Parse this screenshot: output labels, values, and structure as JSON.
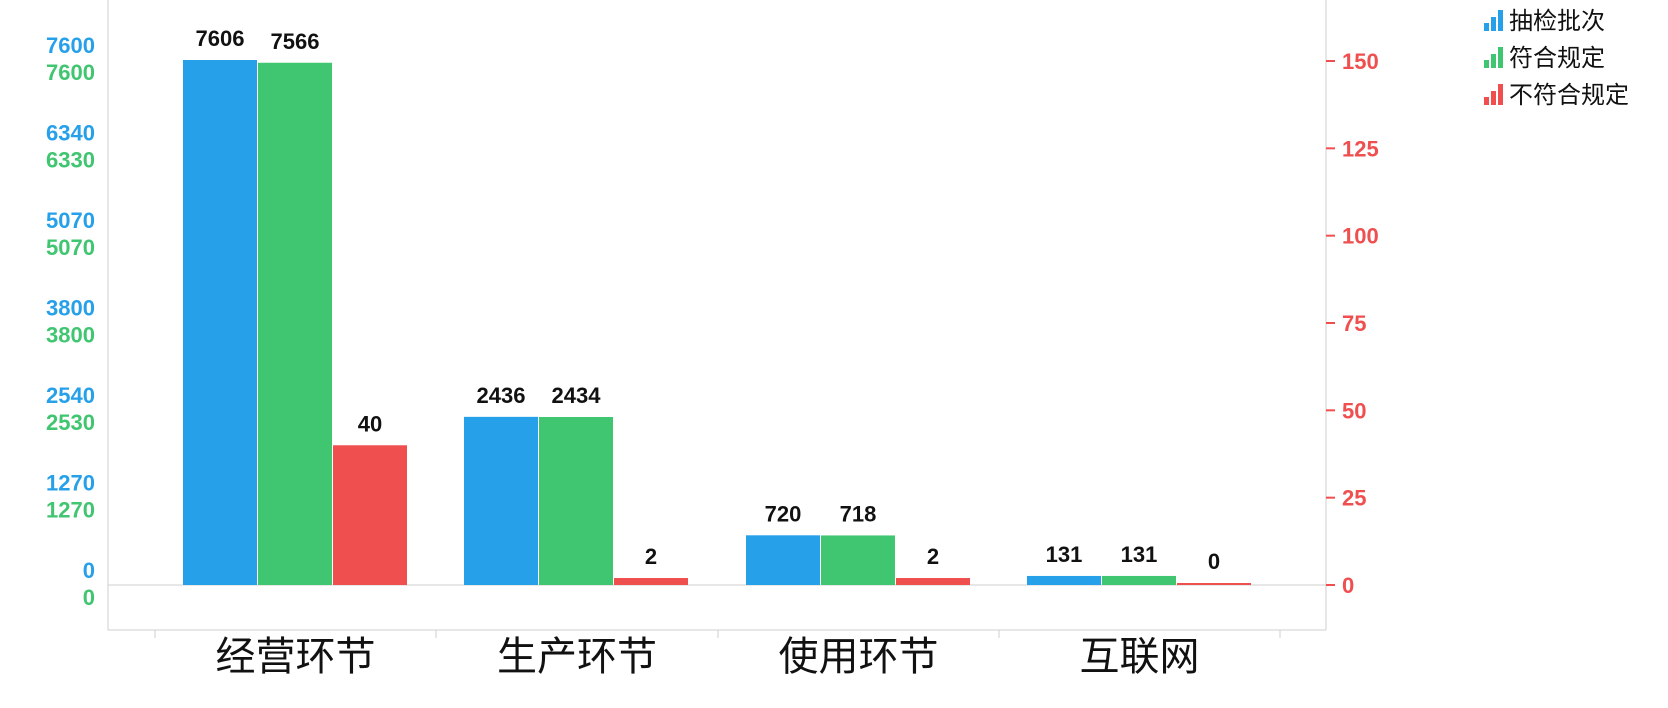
{
  "chart_data": {
    "type": "bar",
    "categories": [
      "经营环节",
      "生产环节",
      "使用环节",
      "互联网"
    ],
    "series": [
      {
        "name": "抽检批次",
        "color": "#27a0ea",
        "axis": "left",
        "values": [
          7606,
          2436,
          720,
          131
        ]
      },
      {
        "name": "符合规定",
        "color": "#40c570",
        "axis": "left",
        "values": [
          7566,
          2434,
          718,
          131
        ]
      },
      {
        "name": "不符合规定",
        "color": "#ef4f4f",
        "axis": "right",
        "values": [
          40,
          2,
          2,
          0
        ]
      }
    ],
    "left_axis": {
      "ylim": [
        0,
        7606
      ],
      "ticks_primary": {
        "color": "#27a0ea",
        "labels": [
          "0",
          "1270",
          "2540",
          "3800",
          "5070",
          "6340",
          "7600"
        ]
      },
      "ticks_secondary": {
        "color": "#40c570",
        "labels": [
          "0",
          "1270",
          "2530",
          "3800",
          "5070",
          "6330",
          "7600"
        ]
      }
    },
    "right_axis": {
      "ylim": [
        0,
        150
      ],
      "color": "#ef4f4f",
      "ticks": [
        0,
        25,
        50,
        75,
        100,
        125,
        150
      ]
    },
    "legend_position": "top-right",
    "grid": false,
    "title": "",
    "xlabel": "",
    "ylabel": ""
  }
}
